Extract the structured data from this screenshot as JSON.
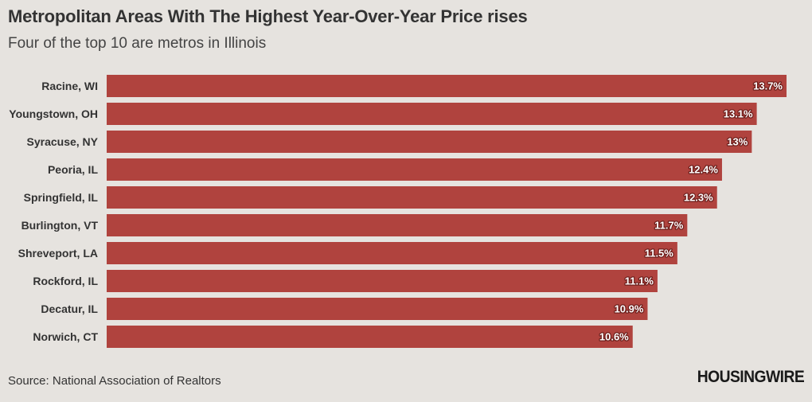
{
  "header": {
    "title": "Metropolitan Areas With The Highest Year-Over-Year Price rises",
    "subtitle": "Four of the top 10 are metros in Illinois"
  },
  "footer": {
    "source": "Source: National Association of Realtors",
    "logo_text": "HOUSINGWIRE"
  },
  "colors": {
    "bar": "#b0433e",
    "background": "#e6e3df"
  },
  "chart_data": {
    "type": "bar",
    "orientation": "horizontal",
    "title": "Metropolitan Areas With The Highest Year-Over-Year Price rises",
    "subtitle": "Four of the top 10 are metros in Illinois",
    "xlabel": "",
    "ylabel": "",
    "xlim": [
      0,
      13.7
    ],
    "grid": false,
    "categories": [
      "Racine, WI",
      "Youngstown, OH",
      "Syracuse, NY",
      "Peoria, IL",
      "Springfield, IL",
      "Burlington, VT",
      "Shreveport, LA",
      "Rockford, IL",
      "Decatur, IL",
      "Norwich, CT"
    ],
    "values": [
      13.7,
      13.1,
      13.0,
      12.4,
      12.3,
      11.7,
      11.5,
      11.1,
      10.9,
      10.6
    ],
    "value_labels": [
      "13.7%",
      "13.1%",
      "13%",
      "12.4%",
      "12.3%",
      "11.7%",
      "11.5%",
      "11.1%",
      "10.9%",
      "10.6%"
    ]
  }
}
